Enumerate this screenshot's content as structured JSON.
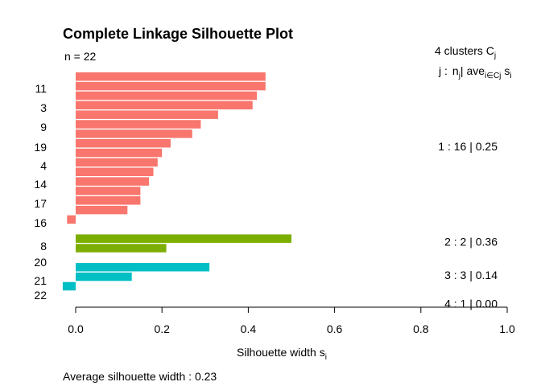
{
  "chart_data": {
    "type": "bar",
    "orientation": "horizontal",
    "title": "Complete Linkage Silhouette Plot",
    "n_label": "n = 22",
    "clusters_header": "4  clusters  C",
    "clusters_header_sub": "j",
    "legend_header": {
      "j": "j :",
      "nj": "n",
      "nj_sub": "j",
      "sep": "| ave",
      "ave_sub": "i∈Cj",
      "s": "s",
      "s_sub": "i"
    },
    "xlabel": "Silhouette width s",
    "xlabel_sub": "i",
    "xlim": [
      0,
      1
    ],
    "ticks": [
      "0.0",
      "0.2",
      "0.4",
      "0.6",
      "0.8",
      "1.0"
    ],
    "tick_values": [
      0,
      0.2,
      0.4,
      0.6,
      0.8,
      1.0
    ],
    "footer": "Average silhouette width :  0.23",
    "colors": [
      "#F8766D",
      "#7CAE00",
      "#00BFC4",
      "#C77CFF"
    ],
    "clusters": [
      {
        "summary": "1 :   16  |  0.25",
        "values": [
          0.44,
          0.44,
          0.42,
          0.41,
          0.33,
          0.29,
          0.27,
          0.22,
          0.2,
          0.19,
          0.18,
          0.17,
          0.15,
          0.15,
          0.12,
          -0.02
        ]
      },
      {
        "summary": "2 :   2  |  0.36",
        "values": [
          0.5,
          0.21
        ]
      },
      {
        "summary": "3 :   3  |  0.14",
        "values": [
          0.31,
          0.13,
          -0.03
        ]
      },
      {
        "summary": "4 :   1  |  0.00",
        "values": [
          0.0
        ]
      }
    ],
    "y_labels": [
      "11",
      "3",
      "9",
      "19",
      "4",
      "14",
      "17",
      "16",
      "8",
      "20",
      "21",
      "22"
    ]
  }
}
